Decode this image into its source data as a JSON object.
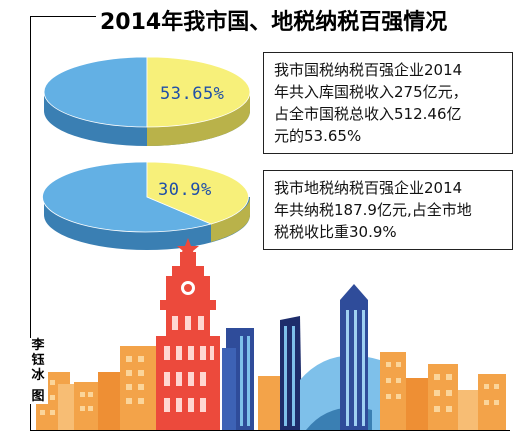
{
  "title": "2014年我市国、地税纳税百强情况",
  "colors": {
    "pie_large": "#63b0e4",
    "pie_large_side": "#3a7fb3",
    "pie_small": "#f7f07a",
    "pie_small_side": "#b9b24a",
    "tower": "#ec4a3c",
    "building_orange": "#f3a349",
    "building_blue": "#2f4c9a",
    "building_sky": "#7ec0ea",
    "building_dark": "#1e2d6b"
  },
  "chart_data": [
    {
      "type": "pie",
      "label": "53.65%",
      "values": [
        53.65,
        46.35
      ],
      "description": "我市国税纳税百强企业2014年共入库国税收入275亿元，占全市国税总收入512.46亿元的53.65%"
    },
    {
      "type": "pie",
      "label": "30.9%",
      "values": [
        30.9,
        69.1
      ],
      "description": "我市地税纳税百强企业2014年共纳税187.9亿元,占全市地税税收比重30.9%"
    }
  ],
  "boxes": {
    "guoshui_lines": [
      "我市国税纳税百强企业2014",
      "年共入库国税收入275亿元，",
      "占全市国税总收入512.46亿",
      "元的53.65%"
    ],
    "dishui_lines": [
      "我市地税纳税百强企业2014",
      "年共纳税187.9亿元,占全市地",
      "税税收比重30.9%"
    ]
  },
  "credit_chars": [
    "李",
    "钰",
    "冰",
    "图"
  ]
}
